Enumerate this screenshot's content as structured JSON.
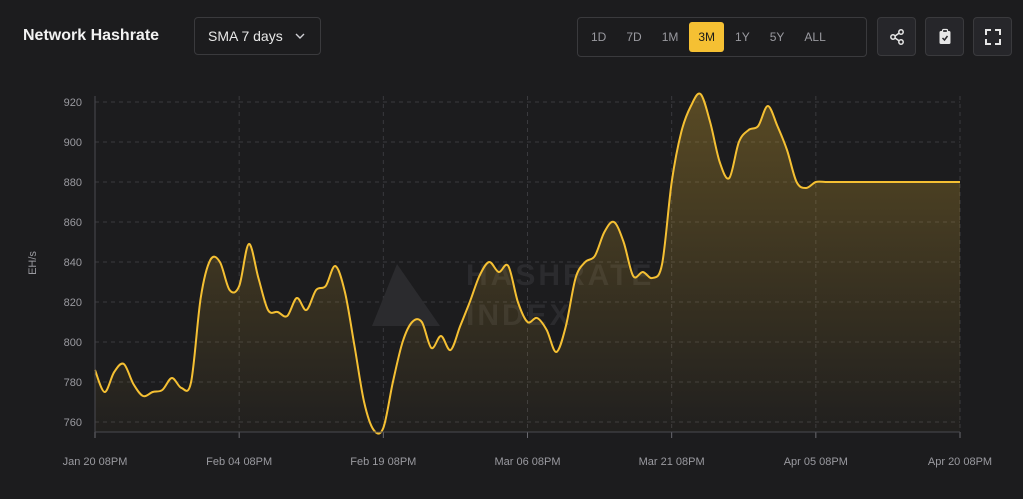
{
  "header": {
    "title": "Network Hashrate",
    "sma_select": "SMA 7 days",
    "ranges": [
      "1D",
      "7D",
      "1M",
      "3M",
      "1Y",
      "5Y",
      "ALL"
    ],
    "active_range": "3M"
  },
  "watermark": {
    "line1": "HASHRATE",
    "line2": "INDEX"
  },
  "colors": {
    "line": "#f5c033",
    "active_range": "#f5c033",
    "background": "#1c1c1e"
  },
  "icons": [
    "share-icon",
    "clipboard-icon",
    "fullscreen-icon",
    "chevron-down-icon"
  ],
  "chart_data": {
    "type": "area",
    "ylabel": "EH/s",
    "ylim": [
      755,
      923
    ],
    "yticks": [
      760,
      780,
      800,
      820,
      840,
      860,
      880,
      900,
      920
    ],
    "xticks": [
      "Jan 20 08PM",
      "Feb 04 08PM",
      "Feb 19 08PM",
      "Mar 06 08PM",
      "Mar 21 08PM",
      "Apr 05 08PM",
      "Apr 20 08PM"
    ],
    "grid": true,
    "x": [
      0,
      1,
      2,
      3,
      4,
      5,
      6,
      7,
      8,
      9,
      10,
      11,
      12,
      13,
      14,
      15,
      16,
      17,
      18,
      19,
      20,
      21,
      22,
      23,
      24,
      25,
      26,
      27,
      28,
      29,
      30,
      31,
      32,
      33,
      34,
      35,
      36,
      37,
      38,
      39,
      40,
      41,
      42,
      43,
      44,
      45,
      46,
      47,
      48,
      49,
      50,
      51,
      52,
      53,
      54,
      55,
      56,
      57,
      58,
      59,
      60,
      61,
      62,
      63,
      64,
      65,
      66,
      67,
      68,
      69,
      70,
      71,
      72,
      73,
      74,
      75,
      76,
      77,
      78,
      79,
      80,
      81,
      82,
      83,
      84,
      85,
      86,
      87,
      88,
      89,
      90
    ],
    "values": [
      786,
      775,
      785,
      789,
      779,
      773,
      775,
      776,
      782,
      777,
      780,
      822,
      841,
      840,
      826,
      828,
      849,
      832,
      816,
      815,
      813,
      822,
      816,
      826,
      828,
      838,
      825,
      798,
      770,
      756,
      757,
      780,
      800,
      810,
      810,
      797,
      803,
      796,
      808,
      820,
      833,
      840,
      835,
      838,
      820,
      810,
      812,
      806,
      795,
      808,
      832,
      840,
      843,
      855,
      860,
      850,
      833,
      835,
      832,
      839,
      880,
      905,
      918,
      924,
      910,
      890,
      882,
      900,
      906,
      908,
      918,
      908,
      896,
      880,
      877,
      880,
      880,
      880,
      880,
      880,
      880,
      880,
      880,
      880,
      880,
      880,
      880,
      880,
      880,
      880,
      880
    ],
    "x_range_days": [
      0,
      90
    ]
  }
}
